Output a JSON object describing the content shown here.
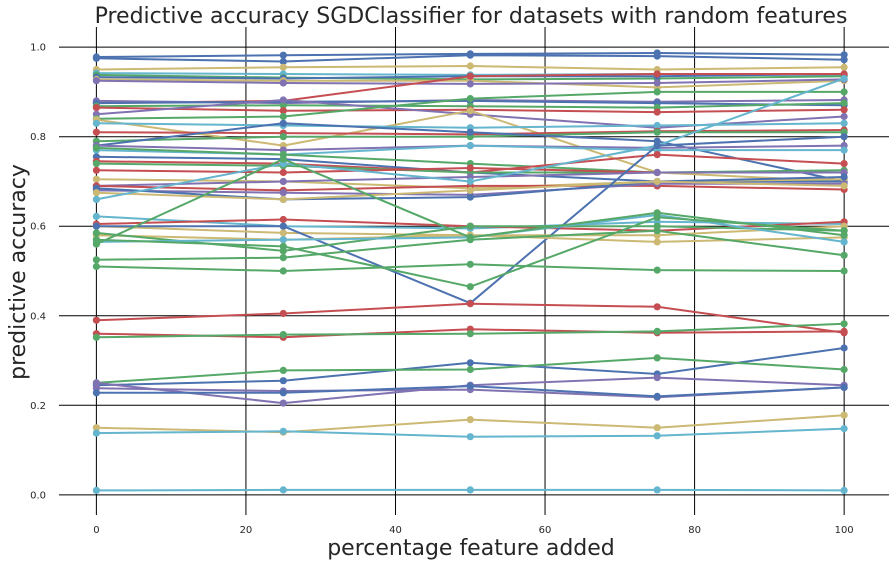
{
  "chart_data": {
    "type": "line",
    "title": "Predictive accuracy SGDClassifier for datasets with random features",
    "xlabel": "percentage feature added",
    "ylabel": "predictive accuracy",
    "xlim": [
      -5,
      106
    ],
    "ylim": [
      -0.045,
      1.045
    ],
    "xticks": [
      0,
      20,
      40,
      60,
      80,
      100
    ],
    "yticks": [
      0.0,
      0.2,
      0.4,
      0.6,
      0.8,
      1.0
    ],
    "xtick_labels": [
      "0",
      "20",
      "40",
      "60",
      "80",
      "100"
    ],
    "ytick_labels": [
      "0.0",
      "0.2",
      "0.4",
      "0.6",
      "0.8",
      "1.0"
    ],
    "grid": true,
    "x": [
      0,
      25,
      50,
      75,
      100
    ],
    "colors": {
      "blue": "#4c72b0",
      "green": "#55a868",
      "red": "#c44e52",
      "purple": "#8172b2",
      "yellow": "#ccb974",
      "cyan": "#64b5cd"
    },
    "series": [
      {
        "color": "blue",
        "values": [
          0.978,
          0.982,
          0.985,
          0.987,
          0.983
        ]
      },
      {
        "color": "blue",
        "values": [
          0.975,
          0.968,
          0.982,
          0.98,
          0.972
        ]
      },
      {
        "color": "yellow",
        "values": [
          0.95,
          0.955,
          0.958,
          0.95,
          0.955
        ]
      },
      {
        "color": "cyan",
        "values": [
          0.942,
          0.94,
          0.938,
          0.94,
          0.938
        ]
      },
      {
        "color": "green",
        "values": [
          0.938,
          0.932,
          0.928,
          0.93,
          0.935
        ]
      },
      {
        "color": "blue",
        "values": [
          0.933,
          0.93,
          0.935,
          0.935,
          0.94
        ]
      },
      {
        "color": "yellow",
        "values": [
          0.928,
          0.925,
          0.925,
          0.91,
          0.925
        ]
      },
      {
        "color": "purple",
        "values": [
          0.925,
          0.92,
          0.918,
          0.92,
          0.928
        ]
      },
      {
        "color": "red",
        "values": [
          0.875,
          0.88,
          0.935,
          0.94,
          0.94
        ]
      },
      {
        "color": "purple",
        "values": [
          0.88,
          0.875,
          0.882,
          0.878,
          0.882
        ]
      },
      {
        "color": "blue",
        "values": [
          0.875,
          0.878,
          0.88,
          0.875,
          0.87
        ]
      },
      {
        "color": "green",
        "values": [
          0.868,
          0.87,
          0.868,
          0.865,
          0.875
        ]
      },
      {
        "color": "red",
        "values": [
          0.865,
          0.858,
          0.86,
          0.855,
          0.86
        ]
      },
      {
        "color": "purple",
        "values": [
          0.85,
          0.882,
          0.85,
          0.82,
          0.845
        ]
      },
      {
        "color": "green",
        "values": [
          0.84,
          0.845,
          0.885,
          0.9,
          0.9
        ]
      },
      {
        "color": "yellow",
        "values": [
          0.838,
          0.78,
          0.858,
          0.72,
          0.7
        ]
      },
      {
        "color": "cyan",
        "values": [
          0.83,
          0.825,
          0.82,
          0.825,
          0.83
        ]
      },
      {
        "color": "red",
        "values": [
          0.81,
          0.808,
          0.805,
          0.812,
          0.815
        ]
      },
      {
        "color": "green",
        "values": [
          0.79,
          0.8,
          0.8,
          0.81,
          0.81
        ]
      },
      {
        "color": "blue",
        "values": [
          0.78,
          0.83,
          0.81,
          0.79,
          0.7
        ]
      },
      {
        "color": "purple",
        "values": [
          0.78,
          0.77,
          0.78,
          0.775,
          0.78
        ]
      },
      {
        "color": "cyan",
        "values": [
          0.77,
          0.76,
          0.78,
          0.77,
          0.77
        ]
      },
      {
        "color": "green",
        "values": [
          0.775,
          0.76,
          0.74,
          0.72,
          0.72
        ]
      },
      {
        "color": "blue",
        "values": [
          0.755,
          0.75,
          0.72,
          0.7,
          0.7
        ]
      },
      {
        "color": "red",
        "values": [
          0.745,
          0.74,
          0.72,
          0.76,
          0.74
        ]
      },
      {
        "color": "green",
        "values": [
          0.74,
          0.735,
          0.72,
          0.72,
          0.725
        ]
      },
      {
        "color": "red",
        "values": [
          0.725,
          0.72,
          0.73,
          0.72,
          0.72
        ]
      },
      {
        "color": "yellow",
        "values": [
          0.705,
          0.7,
          0.685,
          0.7,
          0.705
        ]
      },
      {
        "color": "purple",
        "values": [
          0.69,
          0.7,
          0.71,
          0.72,
          0.72
        ]
      },
      {
        "color": "red",
        "values": [
          0.69,
          0.68,
          0.69,
          0.69,
          0.682
        ]
      },
      {
        "color": "purple",
        "values": [
          0.68,
          0.675,
          0.67,
          0.695,
          0.695
        ]
      },
      {
        "color": "blue",
        "values": [
          0.685,
          0.66,
          0.665,
          0.7,
          0.71
        ]
      },
      {
        "color": "yellow",
        "values": [
          0.675,
          0.66,
          0.68,
          0.7,
          0.69
        ]
      },
      {
        "color": "cyan",
        "values": [
          0.66,
          0.74,
          0.7,
          0.78,
          0.93
        ]
      },
      {
        "color": "cyan",
        "values": [
          0.622,
          0.6,
          0.595,
          0.61,
          0.605
        ]
      },
      {
        "color": "red",
        "values": [
          0.605,
          0.615,
          0.6,
          0.59,
          0.61
        ]
      },
      {
        "color": "yellow",
        "values": [
          0.6,
          0.585,
          0.58,
          0.58,
          0.6
        ]
      },
      {
        "color": "blue",
        "values": [
          0.6,
          0.6,
          0.428,
          0.78,
          0.8
        ]
      },
      {
        "color": "yellow",
        "values": [
          0.58,
          0.57,
          0.58,
          0.565,
          0.575
        ]
      },
      {
        "color": "green",
        "values": [
          0.585,
          0.545,
          0.6,
          0.6,
          0.59
        ]
      },
      {
        "color": "cyan",
        "values": [
          0.565,
          0.57,
          0.575,
          0.625,
          0.565
        ]
      },
      {
        "color": "green",
        "values": [
          0.56,
          0.75,
          0.575,
          0.63,
          0.58
        ]
      },
      {
        "color": "green",
        "values": [
          0.525,
          0.53,
          0.57,
          0.59,
          0.535
        ]
      },
      {
        "color": "green",
        "values": [
          0.51,
          0.5,
          0.515,
          0.502,
          0.5
        ]
      },
      {
        "color": "green",
        "values": [
          0.57,
          0.555,
          0.465,
          0.62,
          0.59
        ]
      },
      {
        "color": "red",
        "values": [
          0.39,
          0.405,
          0.427,
          0.42,
          0.362
        ]
      },
      {
        "color": "red",
        "values": [
          0.36,
          0.352,
          0.37,
          0.362,
          0.365
        ]
      },
      {
        "color": "green",
        "values": [
          0.352,
          0.358,
          0.36,
          0.365,
          0.382
        ]
      },
      {
        "color": "blue",
        "values": [
          0.245,
          0.255,
          0.295,
          0.27,
          0.328
        ]
      },
      {
        "color": "green",
        "values": [
          0.25,
          0.278,
          0.28,
          0.306,
          0.28
        ]
      },
      {
        "color": "purple",
        "values": [
          0.25,
          0.205,
          0.245,
          0.262,
          0.245
        ]
      },
      {
        "color": "purple",
        "values": [
          0.238,
          0.232,
          0.235,
          0.218,
          0.24
        ]
      },
      {
        "color": "blue",
        "values": [
          0.228,
          0.228,
          0.243,
          0.22,
          0.24
        ]
      },
      {
        "color": "yellow",
        "values": [
          0.15,
          0.14,
          0.168,
          0.15,
          0.178
        ]
      },
      {
        "color": "cyan",
        "values": [
          0.138,
          0.142,
          0.13,
          0.132,
          0.148
        ]
      },
      {
        "color": "cyan",
        "values": [
          0.01,
          0.011,
          0.011,
          0.011,
          0.01
        ]
      }
    ]
  }
}
